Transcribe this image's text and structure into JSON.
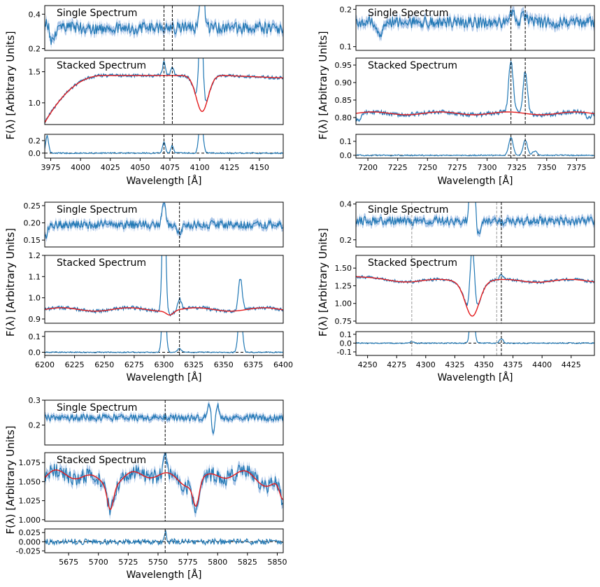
{
  "chart_data": [
    {
      "type": "line",
      "ylabel": "F(λ) [Arbitrary Units]",
      "xlabel": "Wavelength [Å]",
      "xlim": [
        3970,
        4170
      ],
      "xticks": [
        3975,
        4000,
        4025,
        4050,
        4075,
        4100,
        4125,
        4150
      ],
      "marker_lines": [
        {
          "x": 4070,
          "style": "black"
        },
        {
          "x": 4077,
          "style": "black"
        }
      ],
      "panels": {
        "single": {
          "title": "Single Spectrum",
          "ylim": [
            0.19,
            0.45
          ],
          "yticks": [
            0.2,
            0.4
          ],
          "baseline": 0.32,
          "noise": 0.035,
          "band": 0.025,
          "features": [
            {
              "x": 3972,
              "amp": 0.06,
              "w": 2
            },
            {
              "x": 3976,
              "amp": -0.08,
              "w": 2.5
            },
            {
              "x": 4102,
              "amp": 0.45,
              "w": 1.5
            }
          ]
        },
        "stacked": {
          "title": "Stacked Spectrum",
          "ylim": [
            0.65,
            1.72
          ],
          "yticks": [
            1.0,
            1.5
          ],
          "model": {
            "kind": "rising",
            "start": 0.68,
            "plateau": 1.44,
            "rise_end": 4020,
            "dips": [
              {
                "x": 4102,
                "amp": -0.58,
                "w": 5
              }
            ],
            "end": 1.4
          },
          "data_noise": 0.025,
          "data_features": [
            {
              "x": 4070,
              "amp": 0.22,
              "w": 1.2
            },
            {
              "x": 4077,
              "amp": 0.15,
              "w": 1.2
            },
            {
              "x": 4101,
              "amp": 1.6,
              "w": 1.6
            }
          ]
        },
        "residual": {
          "ylim": [
            -0.08,
            0.3
          ],
          "yticks": [
            0.0,
            0.2
          ],
          "noise": 0.01,
          "features": [
            {
              "x": 3972,
              "amp": 0.28,
              "w": 1.2
            },
            {
              "x": 4070,
              "amp": 0.18,
              "w": 1.2
            },
            {
              "x": 4077,
              "amp": 0.12,
              "w": 1.2
            },
            {
              "x": 4101,
              "amp": 0.6,
              "w": 1.6
            }
          ]
        }
      }
    },
    {
      "type": "line",
      "ylabel": "F(λ) [Arbitrary Units]",
      "xlabel": "Wavelength [Å]",
      "xlim": [
        7190,
        7390
      ],
      "xticks": [
        7200,
        7225,
        7250,
        7275,
        7300,
        7325,
        7350,
        7375
      ],
      "marker_lines": [
        {
          "x": 7320,
          "style": "black"
        },
        {
          "x": 7332,
          "style": "black"
        }
      ],
      "panels": {
        "single": {
          "title": "Single Spectrum",
          "ylim": [
            0.09,
            0.21
          ],
          "yticks": [
            0.1,
            0.2
          ],
          "baseline": 0.165,
          "noise": 0.015,
          "band": 0.012,
          "features": [
            {
              "x": 7210,
              "amp": -0.04,
              "w": 2
            },
            {
              "x": 7321,
              "amp": 0.025,
              "w": 2
            },
            {
              "x": 7331,
              "amp": 0.02,
              "w": 2
            }
          ]
        },
        "stacked": {
          "title": "Stacked Spectrum",
          "ylim": [
            0.78,
            0.97
          ],
          "yticks": [
            0.8,
            0.85,
            0.9,
            0.95
          ],
          "model": {
            "kind": "flat",
            "level": 0.812,
            "wiggle": 0.004,
            "dips": []
          },
          "data_noise": 0.006,
          "data_features": [
            {
              "x": 7320,
              "amp": 0.15,
              "w": 1.8
            },
            {
              "x": 7332,
              "amp": 0.12,
              "w": 1.8
            },
            {
              "x": 7192,
              "amp": -0.02,
              "w": 2
            },
            {
              "x": 7385,
              "amp": -0.015,
              "w": 2
            }
          ]
        },
        "residual": {
          "ylim": [
            -0.02,
            0.15
          ],
          "yticks": [
            0.0,
            0.1
          ],
          "noise": 0.004,
          "features": [
            {
              "x": 7320,
              "amp": 0.13,
              "w": 1.8
            },
            {
              "x": 7332,
              "amp": 0.11,
              "w": 1.8
            },
            {
              "x": 7340,
              "amp": 0.03,
              "w": 2
            }
          ]
        }
      }
    },
    {
      "type": "line",
      "ylabel": "F(λ) [Arbitrary Units]",
      "xlabel": "Wavelength [Å]",
      "xlim": [
        6200,
        6400
      ],
      "xticks": [
        6200,
        6225,
        6250,
        6275,
        6300,
        6325,
        6350,
        6375,
        6400
      ],
      "marker_lines": [
        {
          "x": 6313,
          "style": "black"
        }
      ],
      "panels": {
        "single": {
          "title": "Single Spectrum",
          "ylim": [
            0.13,
            0.26
          ],
          "yticks": [
            0.15,
            0.2,
            0.25
          ],
          "baseline": 0.195,
          "noise": 0.012,
          "band": 0.01,
          "features": [
            {
              "x": 6201,
              "amp": -0.03,
              "w": 1.5
            },
            {
              "x": 6300,
              "amp": 0.06,
              "w": 1.5
            },
            {
              "x": 6313,
              "amp": -0.03,
              "w": 1.5
            }
          ]
        },
        "stacked": {
          "title": "Stacked Spectrum",
          "ylim": [
            0.88,
            1.2
          ],
          "yticks": [
            0.9,
            1.0,
            1.1,
            1.2
          ],
          "model": {
            "kind": "flat",
            "level": 0.945,
            "wiggle": 0.008,
            "dips": [
              {
                "x": 6305,
                "amp": -0.02,
                "w": 3
              }
            ]
          },
          "data_noise": 0.008,
          "data_features": [
            {
              "x": 6300,
              "amp": 0.6,
              "w": 1.4
            },
            {
              "x": 6313,
              "amp": 0.05,
              "w": 1.5
            },
            {
              "x": 6364,
              "amp": 0.15,
              "w": 1.6
            }
          ]
        },
        "residual": {
          "ylim": [
            -0.02,
            0.13
          ],
          "yticks": [
            0.0,
            0.1
          ],
          "noise": 0.003,
          "features": [
            {
              "x": 6300,
              "amp": 0.5,
              "w": 1.4
            },
            {
              "x": 6313,
              "amp": 0.025,
              "w": 1.5
            },
            {
              "x": 6364,
              "amp": 0.3,
              "w": 1.6
            }
          ]
        }
      }
    },
    {
      "type": "line",
      "ylabel": "F(λ) [Arbitrary Units]",
      "xlabel": "Wavelength [Å]",
      "xlim": [
        4240,
        4445
      ],
      "xticks": [
        4250,
        4275,
        4300,
        4325,
        4350,
        4375,
        4400,
        4425
      ],
      "marker_lines": [
        {
          "x": 4288,
          "style": "gray"
        },
        {
          "x": 4361,
          "style": "gray"
        },
        {
          "x": 4365,
          "style": "black"
        }
      ],
      "panels": {
        "single": {
          "title": "Single Spectrum",
          "ylim": [
            0.16,
            0.41
          ],
          "yticks": [
            0.2,
            0.4
          ],
          "baseline": 0.305,
          "noise": 0.025,
          "band": 0.02,
          "features": [
            {
              "x": 4340,
              "amp": 0.5,
              "w": 1.8
            },
            {
              "x": 4345,
              "amp": -0.08,
              "w": 2
            }
          ]
        },
        "stacked": {
          "title": "Stacked Spectrum",
          "ylim": [
            0.72,
            1.68
          ],
          "yticks": [
            0.75,
            1.0,
            1.25,
            1.5
          ],
          "model": {
            "kind": "flat",
            "level": 1.32,
            "wiggle": 0.02,
            "dips": [
              {
                "x": 4340,
                "amp": -0.48,
                "w": 6
              }
            ],
            "start": 1.38
          },
          "data_noise": 0.02,
          "data_features": [
            {
              "x": 4340,
              "amp": 1.0,
              "w": 1.8
            },
            {
              "x": 4365,
              "amp": 0.06,
              "w": 1.5
            }
          ]
        },
        "residual": {
          "ylim": [
            -0.14,
            0.13
          ],
          "yticks": [
            -0.1,
            0.0,
            0.1
          ],
          "noise": 0.006,
          "features": [
            {
              "x": 4340,
              "amp": 0.6,
              "w": 1.6
            },
            {
              "x": 4365,
              "amp": 0.05,
              "w": 1.5
            },
            {
              "x": 4288,
              "amp": 0.02,
              "w": 1.5
            }
          ]
        }
      }
    },
    {
      "type": "line",
      "ylabel": "F(λ) [Arbitrary Units]",
      "xlabel": "Wavelength [Å]",
      "xlim": [
        5655,
        5855
      ],
      "xticks": [
        5675,
        5700,
        5725,
        5750,
        5775,
        5800,
        5825,
        5850
      ],
      "marker_lines": [
        {
          "x": 5756,
          "style": "black"
        }
      ],
      "panels": {
        "single": {
          "title": "Single Spectrum",
          "ylim": [
            0.12,
            0.3
          ],
          "yticks": [
            0.2,
            0.3
          ],
          "baseline": 0.23,
          "noise": 0.014,
          "band": 0.012,
          "features": [
            {
              "x": 5793,
              "amp": 0.07,
              "w": 1.4
            },
            {
              "x": 5796,
              "amp": -0.06,
              "w": 1.4
            },
            {
              "x": 5800,
              "amp": 0.05,
              "w": 1.3
            }
          ]
        },
        "stacked": {
          "title": "Stacked Spectrum",
          "ylim": [
            0.998,
            1.088
          ],
          "yticks": [
            1.0,
            1.025,
            1.05,
            1.075
          ],
          "model": {
            "kind": "wavy",
            "level": 1.055,
            "wiggle": 0.012,
            "dips": [
              {
                "x": 5710,
                "amp": -0.03,
                "w": 2.5
              },
              {
                "x": 5782,
                "amp": -0.03,
                "w": 2.5
              },
              {
                "x": 5855,
                "amp": -0.03,
                "w": 3
              }
            ]
          },
          "data_noise": 0.01,
          "data_features": [
            {
              "x": 5756,
              "amp": 0.03,
              "w": 1.2
            }
          ]
        },
        "residual": {
          "ylim": [
            -0.03,
            0.035
          ],
          "yticks": [
            -0.025,
            0.0,
            0.025
          ],
          "noise": 0.008,
          "features": [
            {
              "x": 5756,
              "amp": 0.025,
              "w": 1.2
            }
          ]
        }
      }
    }
  ]
}
